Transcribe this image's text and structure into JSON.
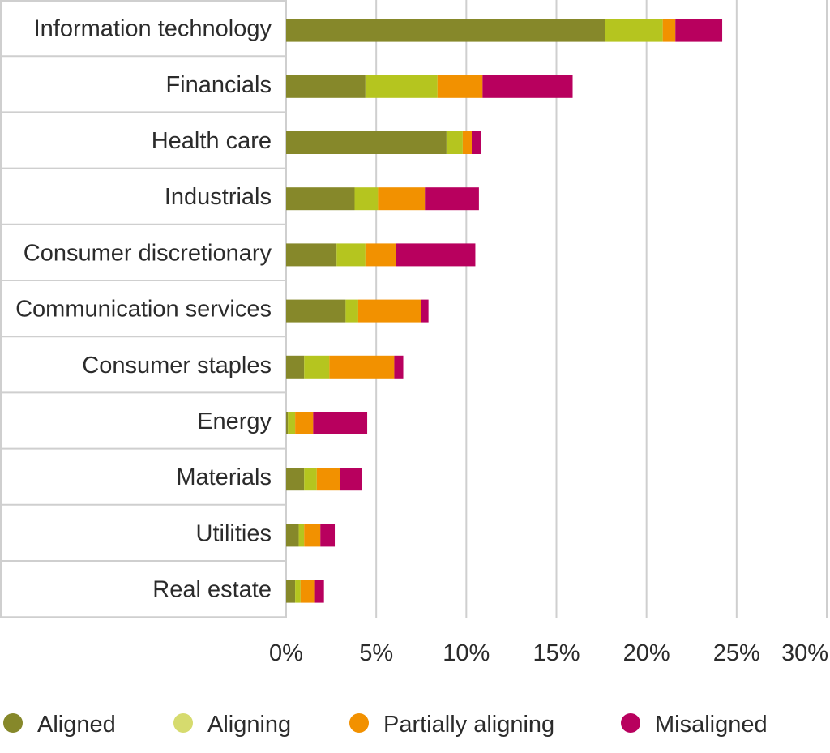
{
  "chart_data": {
    "type": "bar",
    "orientation": "horizontal",
    "stacked": true,
    "title": "",
    "xlabel": "",
    "ylabel": "",
    "xlim": [
      0,
      30
    ],
    "x_ticks": [
      0,
      5,
      10,
      15,
      20,
      25,
      30
    ],
    "x_tick_labels": [
      "0%",
      "5%",
      "10%",
      "15%",
      "20%",
      "25%",
      "30%"
    ],
    "grid": "vertical",
    "legend_position": "bottom",
    "categories": [
      "Information technology",
      "Financials",
      "Health care",
      "Industrials",
      "Consumer discretionary",
      "Communication services",
      "Consumer staples",
      "Energy",
      "Materials",
      "Utilities",
      "Real estate"
    ],
    "series": [
      {
        "name": "Aligned",
        "color": "#86882a",
        "values": [
          17.7,
          4.4,
          8.9,
          3.8,
          2.8,
          3.3,
          1.0,
          0.1,
          1.0,
          0.7,
          0.5
        ]
      },
      {
        "name": "Aligning",
        "color": "#b5c51f",
        "values": [
          3.2,
          4.0,
          0.9,
          1.3,
          1.6,
          0.7,
          1.4,
          0.4,
          0.7,
          0.3,
          0.3
        ]
      },
      {
        "name": "Partially aligning",
        "color": "#f29100",
        "values": [
          0.7,
          2.5,
          0.5,
          2.6,
          1.7,
          3.5,
          3.6,
          1.0,
          1.3,
          0.9,
          0.8
        ]
      },
      {
        "name": "Misaligned",
        "color": "#b8005e",
        "values": [
          2.6,
          5.0,
          0.5,
          3.0,
          4.4,
          0.4,
          0.5,
          3.0,
          1.2,
          0.8,
          0.5
        ]
      }
    ],
    "legend_marker_colors": {
      "Aligned": "#86882a",
      "Aligning": "#d6db6e",
      "Partially aligning": "#f29100",
      "Misaligned": "#b8005e"
    }
  }
}
